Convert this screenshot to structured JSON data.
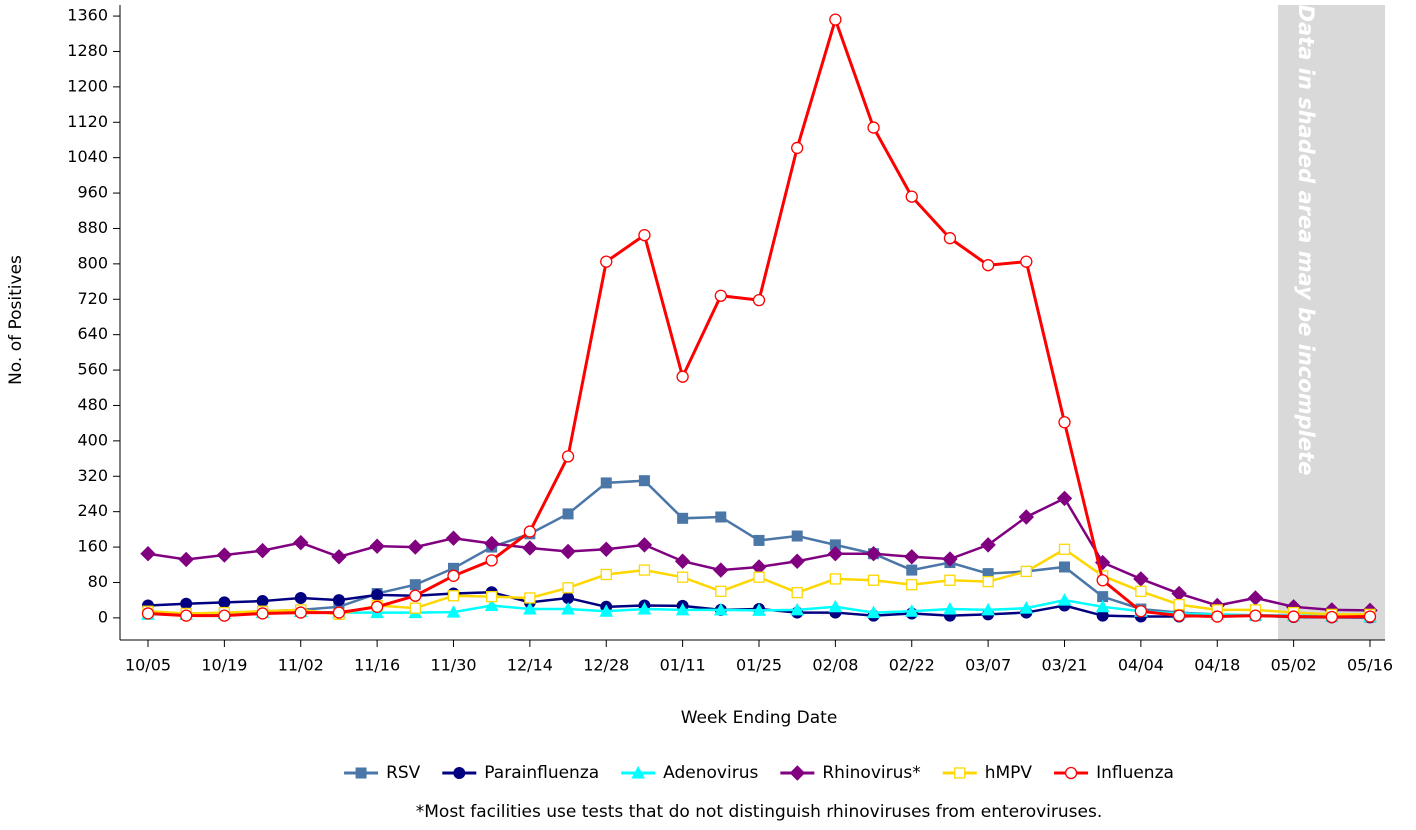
{
  "chart_data": {
    "type": "line",
    "x_label": "Week Ending Date",
    "y_label": "No. of Positives",
    "shaded_note": "Data in shaded area may be incomplete",
    "footnote": "*Most facilities use tests that do not distinguish rhinoviruses from enteroviruses.",
    "categories": [
      "10/05",
      null,
      "10/19",
      null,
      "11/02",
      null,
      "11/16",
      null,
      "11/30",
      null,
      "12/14",
      null,
      "12/28",
      null,
      "01/11",
      null,
      "01/25",
      null,
      "02/08",
      null,
      "02/22",
      null,
      "03/07",
      null,
      "03/21",
      null,
      "04/04",
      null,
      "04/18",
      null,
      "05/02",
      null,
      "05/16"
    ],
    "ylim": [
      -50,
      1385
    ],
    "yticks": [
      0,
      80,
      160,
      240,
      320,
      400,
      480,
      560,
      640,
      720,
      800,
      880,
      960,
      1040,
      1120,
      1200,
      1280,
      1360
    ],
    "series": [
      {
        "name": "RSV",
        "color": "#4a76a8",
        "marker": "square",
        "values": [
          10,
          10,
          10,
          15,
          18,
          25,
          55,
          75,
          112,
          160,
          190,
          235,
          305,
          310,
          225,
          228,
          175,
          185,
          165,
          145,
          108,
          125,
          100,
          105,
          115,
          48,
          20,
          12,
          8,
          5,
          5,
          3,
          2
        ]
      },
      {
        "name": "Parainfluenza",
        "color": "#000080",
        "marker": "circle",
        "values": [
          28,
          32,
          35,
          38,
          45,
          40,
          52,
          50,
          55,
          58,
          35,
          45,
          25,
          28,
          27,
          18,
          20,
          12,
          12,
          5,
          10,
          5,
          8,
          12,
          28,
          5,
          3,
          3,
          5,
          5,
          2,
          1,
          1
        ]
      },
      {
        "name": "Adenovirus",
        "color": "#00ffff",
        "marker": "triangle",
        "values": [
          8,
          8,
          10,
          12,
          14,
          12,
          12,
          12,
          13,
          28,
          20,
          20,
          15,
          20,
          18,
          18,
          17,
          18,
          25,
          12,
          15,
          20,
          18,
          22,
          40,
          25,
          15,
          10,
          8,
          6,
          5,
          4,
          3
        ]
      },
      {
        "name": "Rhinovirus*",
        "color": "#800080",
        "marker": "diamond",
        "values": [
          145,
          132,
          142,
          152,
          170,
          138,
          162,
          160,
          180,
          168,
          158,
          150,
          155,
          165,
          128,
          108,
          115,
          128,
          145,
          145,
          138,
          133,
          165,
          228,
          270,
          125,
          88,
          55,
          28,
          45,
          25,
          18,
          17
        ]
      },
      {
        "name": "hMPV",
        "color": "#ffd700",
        "marker": "square-open",
        "values": [
          15,
          10,
          12,
          15,
          18,
          8,
          28,
          22,
          50,
          48,
          45,
          68,
          98,
          108,
          92,
          60,
          92,
          57,
          88,
          85,
          75,
          85,
          82,
          105,
          155,
          95,
          60,
          30,
          18,
          18,
          12,
          8,
          8
        ]
      },
      {
        "name": "Influenza",
        "color": "#ff0000",
        "marker": "circle-open",
        "values": [
          10,
          5,
          5,
          10,
          12,
          12,
          25,
          50,
          95,
          130,
          195,
          365,
          805,
          865,
          545,
          728,
          718,
          1062,
          1352,
          1108,
          952,
          858,
          797,
          805,
          442,
          85,
          15,
          5,
          3,
          5,
          3,
          2,
          3
        ]
      }
    ]
  }
}
